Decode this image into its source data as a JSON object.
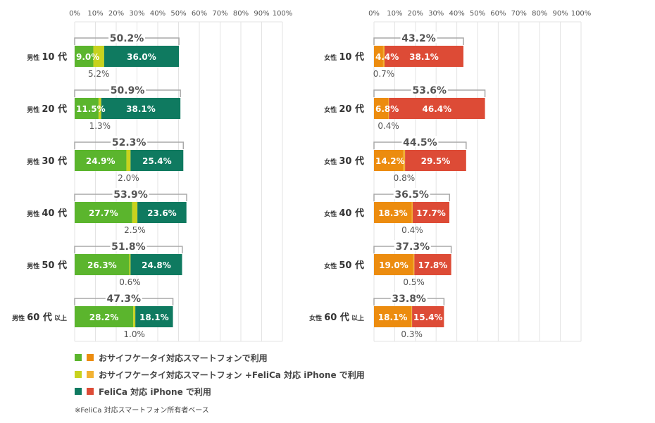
{
  "chart_data": [
    {
      "type": "bar",
      "stacked": true,
      "orientation": "horizontal",
      "xlim": [
        0,
        100
      ],
      "x_ticks": [
        "0%",
        "10%",
        "20%",
        "30%",
        "40%",
        "50%",
        "60%",
        "70%",
        "80%",
        "90%",
        "100%"
      ],
      "categories": [
        "男性 10 代",
        "男性 20 代",
        "男性 30 代",
        "男性 40 代",
        "男性 50 代",
        "男性 60 代 以上"
      ],
      "category_parts": [
        {
          "main": "男性",
          "num": "10 代",
          "suffix": ""
        },
        {
          "main": "男性",
          "num": "20 代",
          "suffix": ""
        },
        {
          "main": "男性",
          "num": "30 代",
          "suffix": ""
        },
        {
          "main": "男性",
          "num": "40 代",
          "suffix": ""
        },
        {
          "main": "男性",
          "num": "50 代",
          "suffix": ""
        },
        {
          "main": "男性",
          "num": "60 代",
          "suffix": "以上"
        }
      ],
      "colors": [
        "#5bb52d",
        "#c8d21e",
        "#0f7a60"
      ],
      "series": [
        {
          "values": [
            9.0,
            11.5,
            24.9,
            27.7,
            26.3,
            28.2
          ],
          "labels": [
            "9.0%",
            "11.5%",
            "24.9%",
            "27.7%",
            "26.3%",
            "28.2%"
          ]
        },
        {
          "values": [
            5.2,
            1.3,
            2.0,
            2.5,
            0.6,
            1.0
          ],
          "labels": [
            "5.2%",
            "1.3%",
            "2.0%",
            "2.5%",
            "0.6%",
            "1.0%"
          ]
        },
        {
          "values": [
            36.0,
            38.1,
            25.4,
            23.6,
            24.8,
            18.1
          ],
          "labels": [
            "36.0%",
            "38.1%",
            "25.4%",
            "23.6%",
            "24.8%",
            "18.1%"
          ]
        }
      ],
      "totals": [
        50.2,
        50.9,
        52.3,
        53.9,
        51.8,
        47.3
      ],
      "total_labels": [
        "50.2%",
        "50.9%",
        "52.3%",
        "53.9%",
        "51.8%",
        "47.3%"
      ]
    },
    {
      "type": "bar",
      "stacked": true,
      "orientation": "horizontal",
      "xlim": [
        0,
        100
      ],
      "x_ticks": [
        "0%",
        "10%",
        "20%",
        "30%",
        "40%",
        "50%",
        "60%",
        "70%",
        "80%",
        "90%",
        "100%"
      ],
      "categories": [
        "女性 10 代",
        "女性 20 代",
        "女性 30 代",
        "女性 40 代",
        "女性 50 代",
        "女性 60 代 以上"
      ],
      "category_parts": [
        {
          "main": "女性",
          "num": "10 代",
          "suffix": ""
        },
        {
          "main": "女性",
          "num": "20 代",
          "suffix": ""
        },
        {
          "main": "女性",
          "num": "30 代",
          "suffix": ""
        },
        {
          "main": "女性",
          "num": "40 代",
          "suffix": ""
        },
        {
          "main": "女性",
          "num": "50 代",
          "suffix": ""
        },
        {
          "main": "女性",
          "num": "60 代",
          "suffix": "以上"
        }
      ],
      "colors": [
        "#ec8c0f",
        "#f2b233",
        "#dd4b36"
      ],
      "series": [
        {
          "values": [
            4.4,
            6.8,
            14.2,
            18.3,
            19.0,
            18.1
          ],
          "labels": [
            "4.4%",
            "6.8%",
            "14.2%",
            "18.3%",
            "19.0%",
            "18.1%"
          ]
        },
        {
          "values": [
            0.7,
            0.4,
            0.8,
            0.4,
            0.5,
            0.3
          ],
          "labels": [
            "0.7%",
            "0.4%",
            "0.8%",
            "0.4%",
            "0.5%",
            "0.3%"
          ]
        },
        {
          "values": [
            38.1,
            46.4,
            29.5,
            17.7,
            17.8,
            15.4
          ],
          "labels": [
            "38.1%",
            "46.4%",
            "29.5%",
            "17.7%",
            "17.8%",
            "15.4%"
          ]
        }
      ],
      "totals": [
        43.2,
        53.6,
        44.5,
        36.5,
        37.3,
        33.8
      ],
      "total_labels": [
        "43.2%",
        "53.6%",
        "44.5%",
        "36.5%",
        "37.3%",
        "33.8%"
      ]
    }
  ],
  "legend": [
    {
      "text": "おサイフケータイ対応スマートフォンで利用",
      "colors": [
        "#5bb52d",
        "#ec8c0f"
      ]
    },
    {
      "text": "おサイフケータイ対応スマートフォン +FeliCa 対応 iPhone で利用",
      "colors": [
        "#c8d21e",
        "#f2b233"
      ]
    },
    {
      "text": "FeliCa 対応 iPhone で利用",
      "colors": [
        "#0f7a60",
        "#dd4b36"
      ]
    }
  ],
  "note": "※FeliCa 対応スマートフォン所有者ベース"
}
